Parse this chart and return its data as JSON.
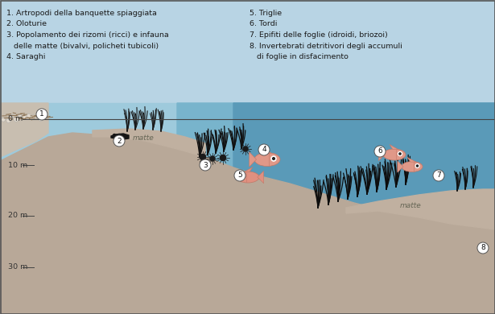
{
  "legend_left": [
    "1. Artropodi della banquette spiaggiata",
    "2. Oloturie",
    "3. Popolamento dei rizomi (ricci) e infauna",
    "   delle matte (bivalvi, policheti tubicoli)",
    "4. Saraghi"
  ],
  "legend_right": [
    "5. Triglie",
    "6. Tordi",
    "7. Epifiti delle foglie (idroidi, briozoi)",
    "8. Invertebrati detritivori degli accumuli",
    "   di foglie in disfacimento"
  ],
  "depth_labels": [
    "0 m",
    "10 m",
    "20 m",
    "30 m"
  ],
  "bg_sky": "#b8d8e8",
  "bg_water_shallow": "#9cc4d8",
  "bg_water_deep": "#5a9ab8",
  "seafloor_col": "#b0a090",
  "shore_col": "#c8b8a8",
  "matte_col": "#c0b0a0",
  "text_col": "#1a1a1a",
  "fish_col": "#e8a090",
  "fish_outline": "#c07868"
}
